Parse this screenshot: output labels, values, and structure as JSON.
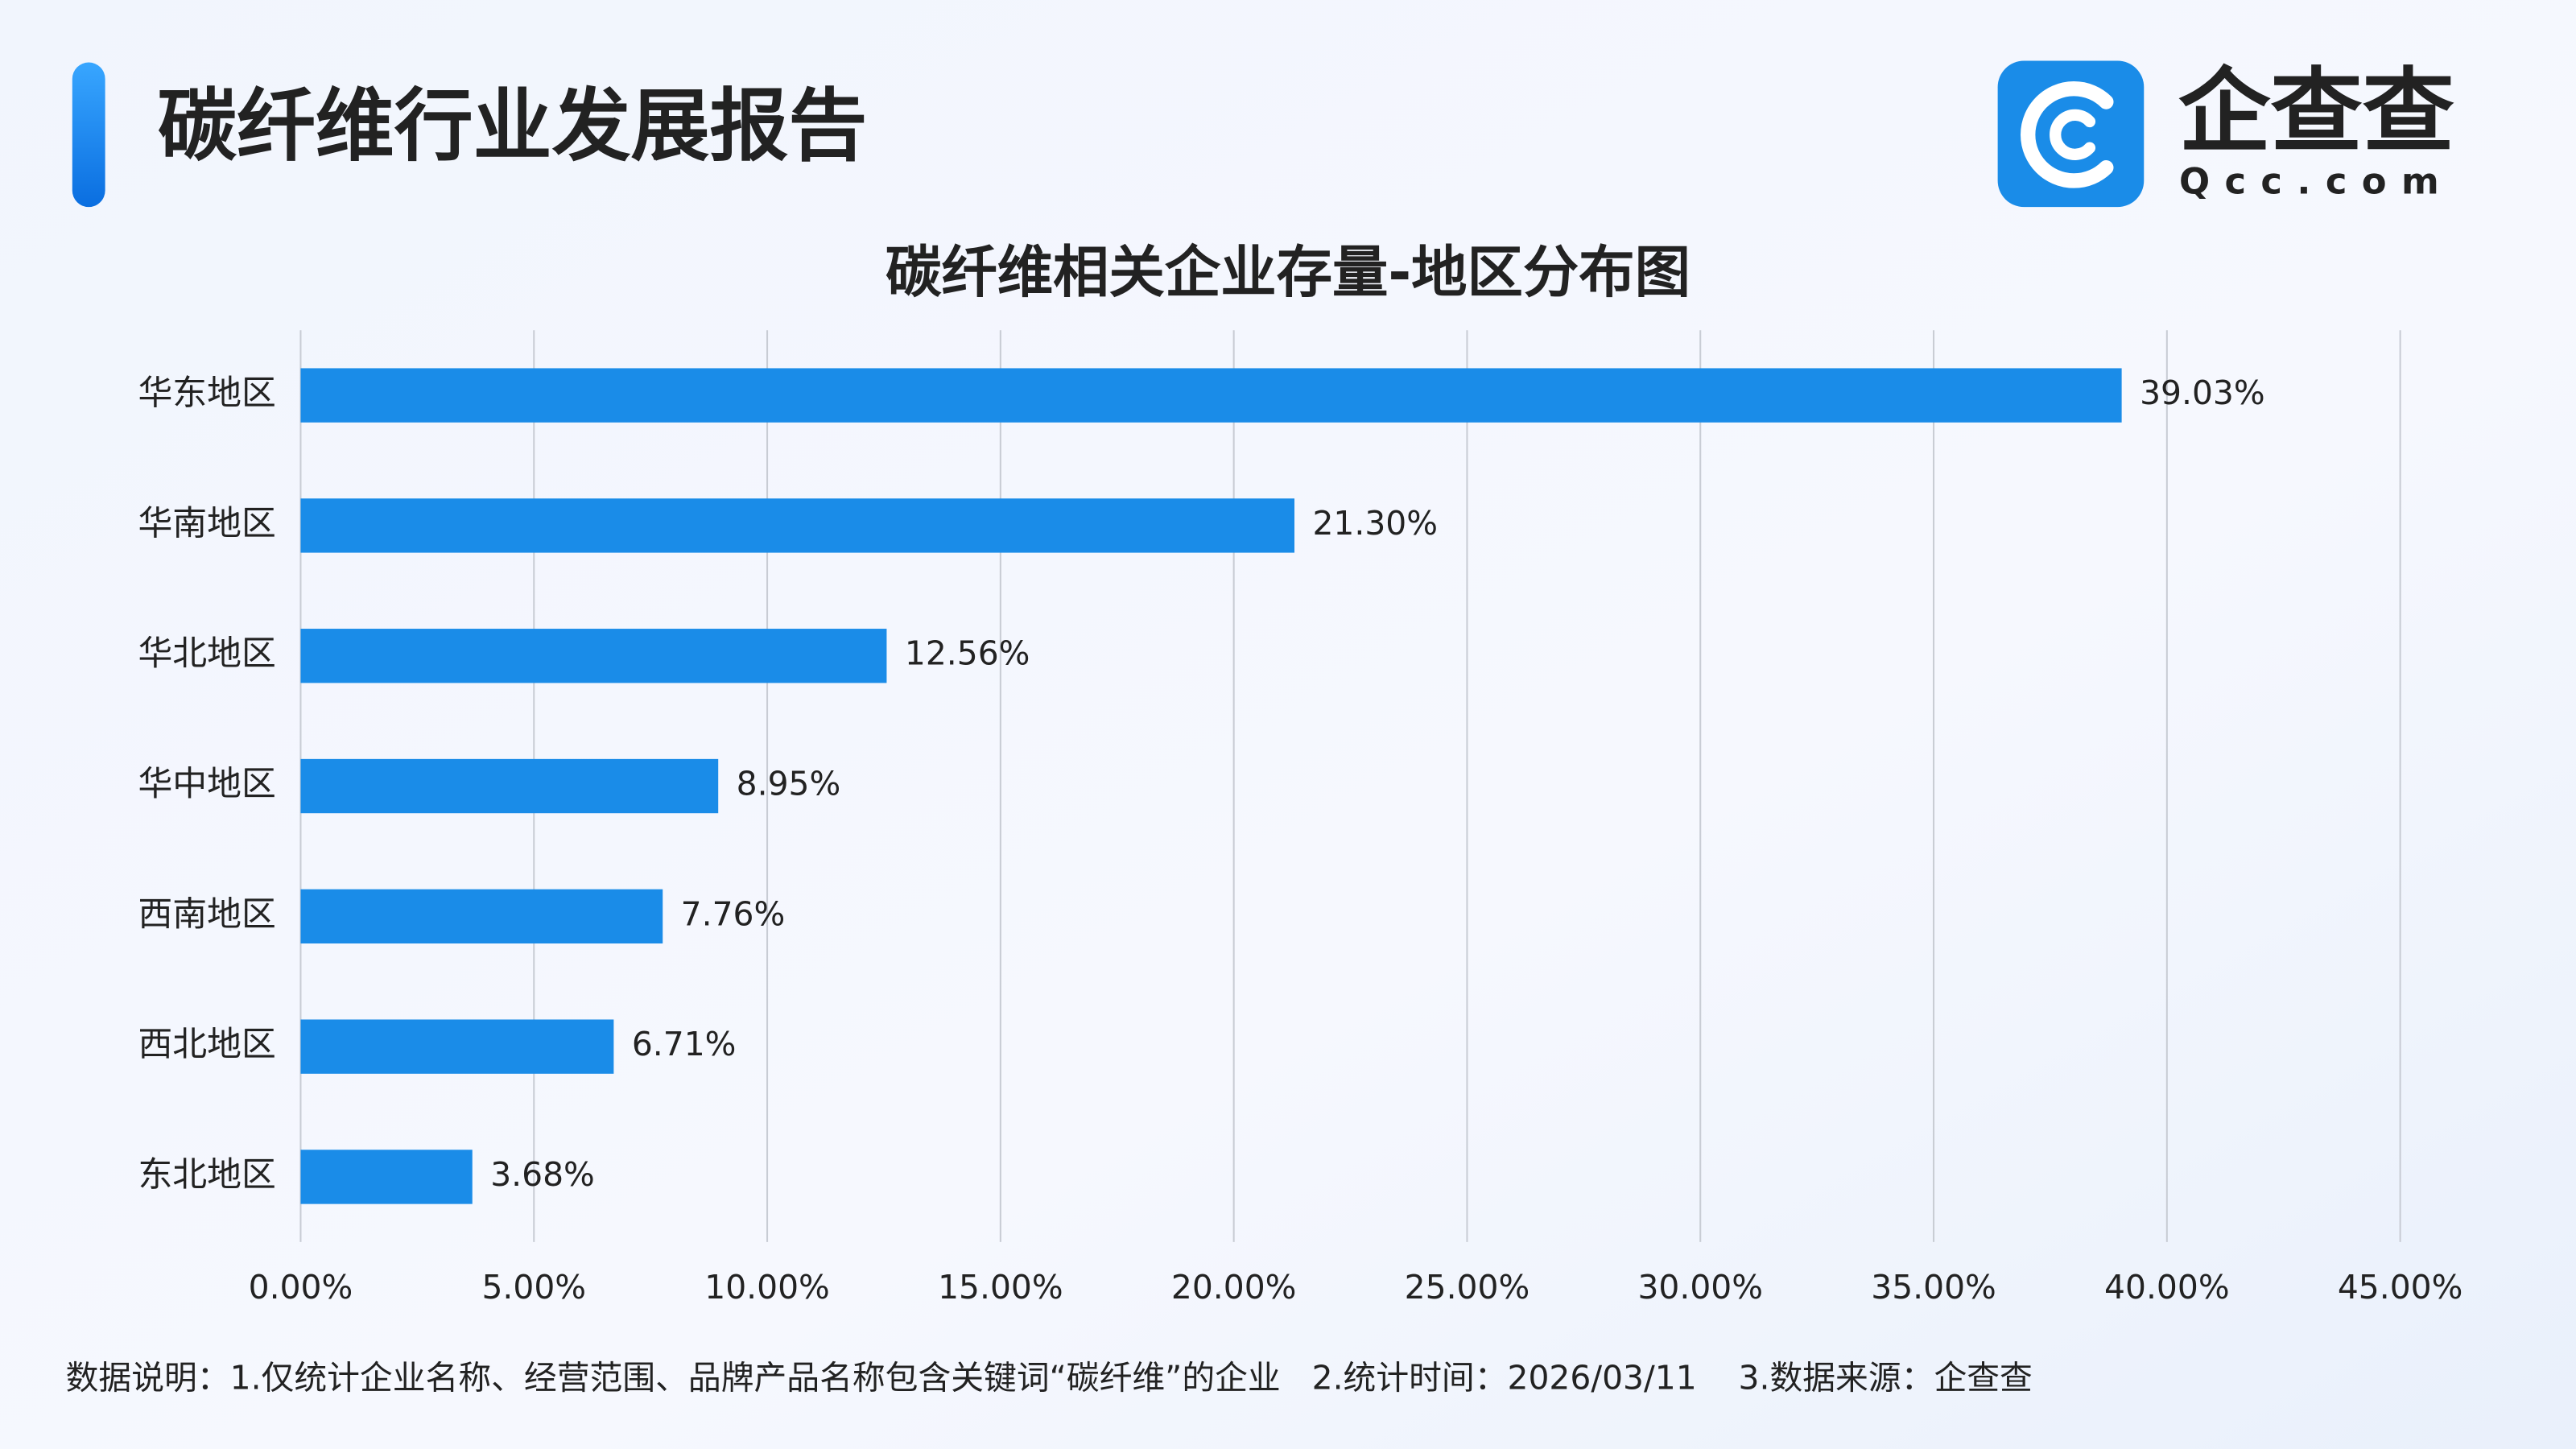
{
  "header": {
    "title": "碳纤维行业发展报告"
  },
  "logo": {
    "name": "企查查",
    "domain": "Qcc.com"
  },
  "chart_data": {
    "type": "hbar",
    "title": "碳纤维相关企业存量-地区分布图",
    "categories": [
      "华东地区",
      "华南地区",
      "华北地区",
      "华中地区",
      "西南地区",
      "西北地区",
      "东北地区"
    ],
    "values": [
      39.03,
      21.3,
      12.56,
      8.95,
      7.76,
      6.71,
      3.68
    ],
    "value_labels": [
      "39.03%",
      "21.30%",
      "12.56%",
      "8.95%",
      "7.76%",
      "6.71%",
      "3.68%"
    ],
    "color": "#1a8ce8",
    "xlim": [
      0,
      45
    ],
    "xticks": [
      {
        "value": 0,
        "label": "0.00%"
      },
      {
        "value": 5,
        "label": "5.00%"
      },
      {
        "value": 10,
        "label": "10.00%"
      },
      {
        "value": 15,
        "label": "15.00%"
      },
      {
        "value": 20,
        "label": "20.00%"
      },
      {
        "value": 25,
        "label": "25.00%"
      },
      {
        "value": 30,
        "label": "30.00%"
      },
      {
        "value": 35,
        "label": "35.00%"
      },
      {
        "value": 40,
        "label": "40.00%"
      },
      {
        "value": 45,
        "label": "45.00%"
      }
    ],
    "grid": true
  },
  "footnote": "数据说明：1.仅统计企业名称、经营范围、品牌产品名称包含关键词“碳纤维”的企业   2.统计时间：2026/03/11    3.数据来源：企查查"
}
